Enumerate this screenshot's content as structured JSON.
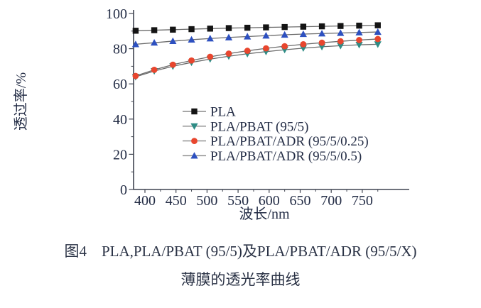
{
  "figure": {
    "caption_line1": "图4　PLA,PLA/PBAT (95/5)及PLA/PBAT/ADR (95/5/X)",
    "caption_line2": "薄膜的透光率曲线"
  },
  "chart_data": {
    "type": "line",
    "title": "",
    "xlabel": "波长/nm",
    "ylabel": "透过率/%",
    "xlim": [
      380,
      820
    ],
    "ylim": [
      0,
      100
    ],
    "x_ticks": [
      400,
      450,
      500,
      550,
      600,
      650,
      700,
      750
    ],
    "y_ticks": [
      0,
      20,
      40,
      60,
      80,
      100
    ],
    "grid": false,
    "legend_position": "inside-middle-left",
    "x": [
      385,
      415,
      445,
      475,
      505,
      535,
      565,
      595,
      625,
      655,
      685,
      715,
      745,
      775
    ],
    "series": [
      {
        "name": "PLA",
        "marker": "square",
        "color": "#141414",
        "line_color": "#6b6b6b",
        "values": [
          90.2,
          90.5,
          90.8,
          91.1,
          91.4,
          91.7,
          91.9,
          92.1,
          92.3,
          92.5,
          92.7,
          92.9,
          93.1,
          93.3
        ]
      },
      {
        "name": "PLA/PBAT (95/5)",
        "marker": "triangle-down",
        "color": "#2e8c85",
        "line_color": "#6b6b6b",
        "values": [
          64.0,
          67.3,
          70.0,
          72.2,
          74.1,
          75.7,
          77.1,
          78.3,
          79.4,
          80.3,
          81.1,
          81.7,
          82.2,
          82.5
        ]
      },
      {
        "name": "PLA/PBAT/ADR (95/5/0.25)",
        "marker": "circle",
        "color": "#e8462e",
        "line_color": "#6b6b6b",
        "values": [
          64.5,
          68.0,
          70.9,
          73.3,
          75.4,
          77.2,
          78.8,
          80.2,
          81.4,
          82.5,
          83.4,
          84.2,
          84.9,
          85.5
        ]
      },
      {
        "name": "PLA/PBAT/ADR (95/5/0.5)",
        "marker": "triangle-up",
        "color": "#2d50c0",
        "line_color": "#6b6b6b",
        "values": [
          82.5,
          83.4,
          84.3,
          85.1,
          85.8,
          86.4,
          86.9,
          87.4,
          87.9,
          88.3,
          88.6,
          88.9,
          89.2,
          89.5
        ]
      }
    ]
  },
  "colors": {
    "axis": "#3f4450",
    "text": "#232c45",
    "legend_line": "#8a8a8a"
  }
}
